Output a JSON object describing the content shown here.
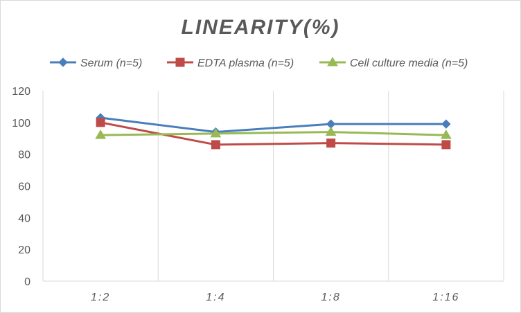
{
  "chart_data": {
    "type": "line",
    "title": "LINEARITY(%)",
    "xlabel": "",
    "ylabel": "",
    "categories": [
      "1:2",
      "1:4",
      "1:8",
      "1:16"
    ],
    "ylim": [
      0,
      120
    ],
    "yticks": [
      0,
      20,
      40,
      60,
      80,
      100,
      120
    ],
    "grid": "vertical",
    "legend_position": "top",
    "series": [
      {
        "name": "Serum (n=5)",
        "values": [
          103,
          94,
          99,
          99
        ],
        "color": "#4a7ebb",
        "marker": "diamond"
      },
      {
        "name": "EDTA plasma (n=5)",
        "values": [
          100,
          86,
          87,
          86
        ],
        "color": "#be4b48",
        "marker": "square"
      },
      {
        "name": "Cell culture media (n=5)",
        "values": [
          92,
          93,
          94,
          92
        ],
        "color": "#98b954",
        "marker": "triangle"
      }
    ]
  }
}
